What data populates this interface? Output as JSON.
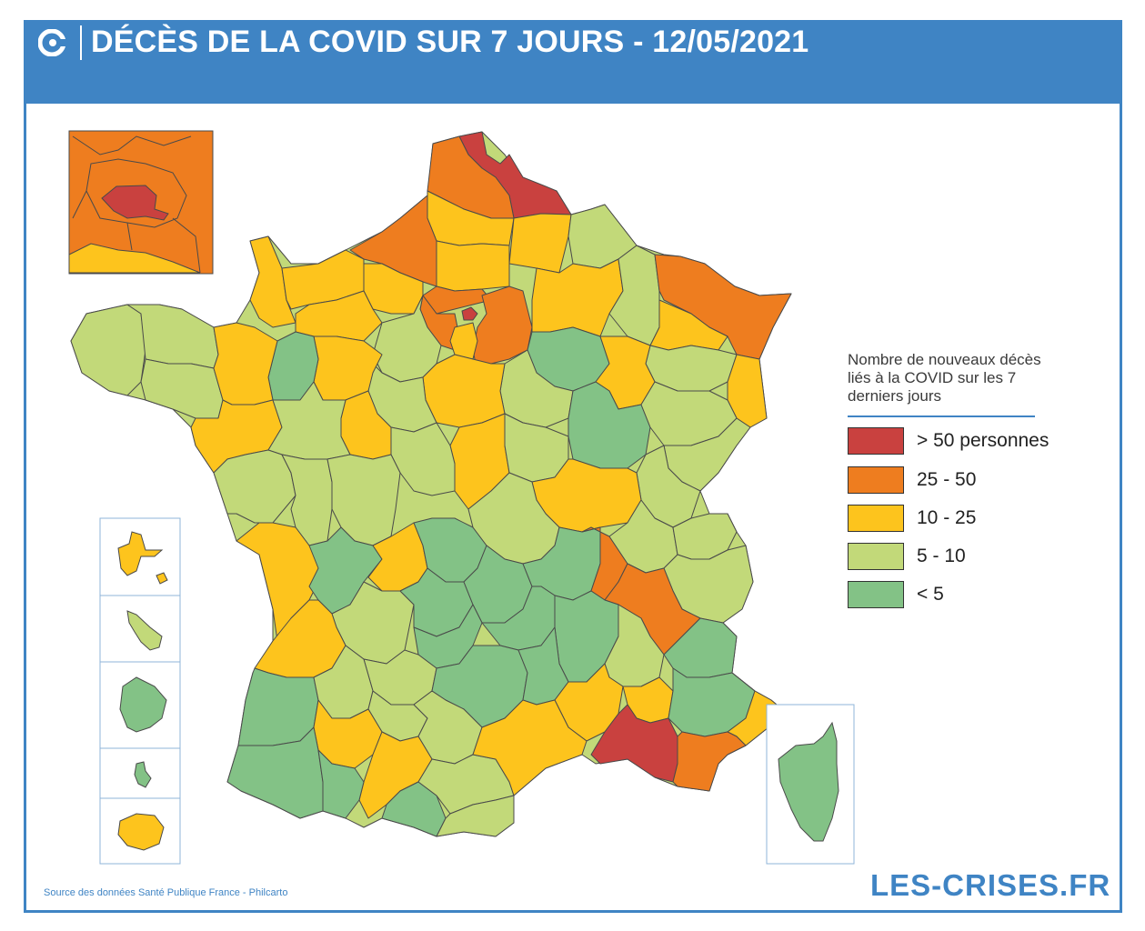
{
  "header": {
    "title": "DÉCÈS DE LA COVID SUR 7 JOURS - 12/05/2021"
  },
  "legend": {
    "title": "Nombre de nouveaux décès liés à la COVID sur les 7 derniers jours",
    "items": [
      {
        "label": "> 50 personnes",
        "color": "#c9413f"
      },
      {
        "label": "25 - 50",
        "color": "#ee7d1f"
      },
      {
        "label": "10 - 25",
        "color": "#fdc41d"
      },
      {
        "label": "5 - 10",
        "color": "#c2d979"
      },
      {
        "label": "< 5",
        "color": "#83c286"
      }
    ]
  },
  "footer": {
    "source": "Source des données Santé Publique France - Philcarto",
    "brand": "LES-CRISES.FR"
  }
}
